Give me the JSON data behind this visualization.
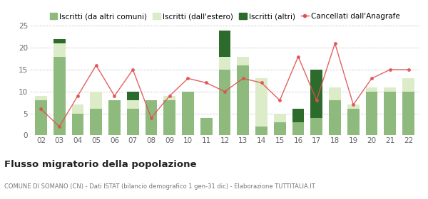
{
  "years": [
    "02",
    "03",
    "04",
    "05",
    "06",
    "07",
    "08",
    "09",
    "10",
    "11",
    "12",
    "13",
    "14",
    "15",
    "16",
    "17",
    "18",
    "19",
    "20",
    "21",
    "22"
  ],
  "iscritti_comuni": [
    8,
    18,
    5,
    6,
    8,
    6,
    8,
    8,
    10,
    4,
    15,
    16,
    2,
    3,
    3,
    4,
    8,
    6,
    10,
    10,
    10
  ],
  "iscritti_estero": [
    1,
    3,
    2,
    4,
    0,
    2,
    0,
    1,
    0,
    0,
    3,
    2,
    11,
    2,
    0,
    0,
    3,
    1,
    1,
    1,
    3
  ],
  "iscritti_altri": [
    0,
    1,
    0,
    0,
    0,
    2,
    0,
    0,
    0,
    0,
    6,
    0,
    0,
    0,
    3,
    11,
    0,
    0,
    0,
    0,
    0
  ],
  "cancellati": [
    6,
    2,
    9,
    16,
    9,
    15,
    4,
    9,
    13,
    12,
    10,
    13,
    12,
    8,
    18,
    8,
    21,
    7,
    13,
    15,
    15
  ],
  "color_comuni": "#8fba7e",
  "color_estero": "#ddecc8",
  "color_altri": "#2d6b2d",
  "color_cancellati": "#e05050",
  "title": "Flusso migratorio della popolazione",
  "subtitle": "COMUNE DI SOMANO (CN) - Dati ISTAT (bilancio demografico 1 gen-31 dic) - Elaborazione TUTTITALIA.IT",
  "legend_labels": [
    "Iscritti (da altri comuni)",
    "Iscritti (dall'estero)",
    "Iscritti (altri)",
    "Cancellati dall'Anagrafe"
  ],
  "ylim": [
    0,
    25
  ],
  "yticks": [
    0,
    5,
    10,
    15,
    20,
    25
  ],
  "bg_color": "#ffffff"
}
